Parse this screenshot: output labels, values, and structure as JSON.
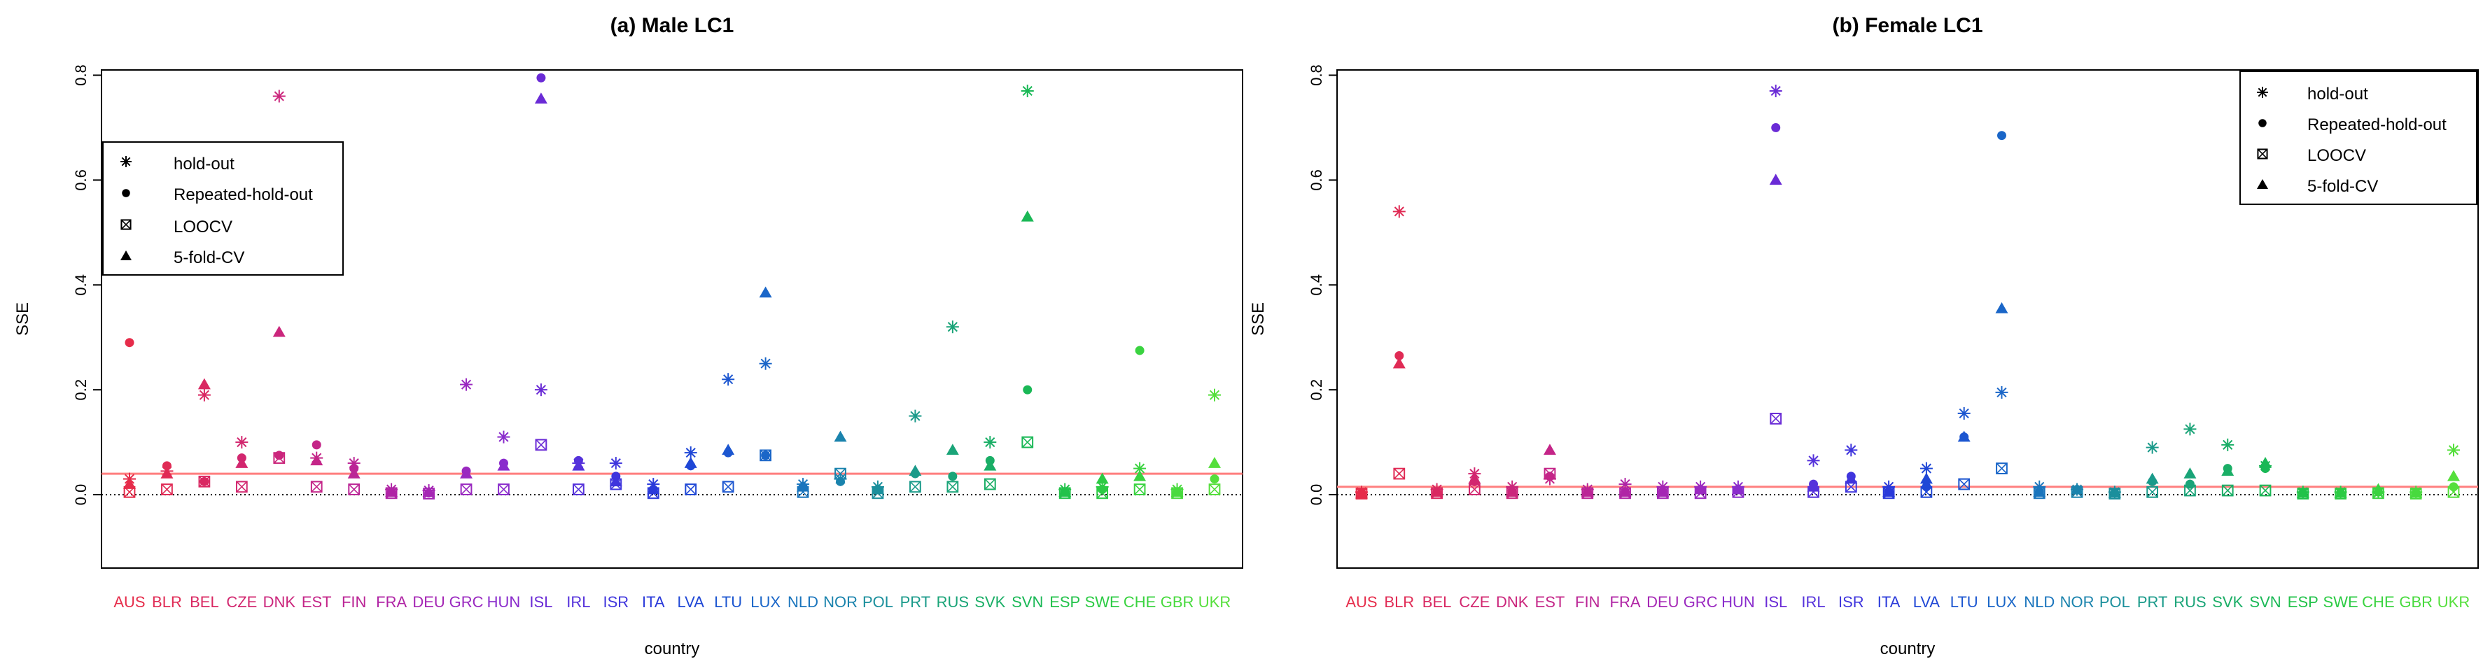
{
  "figure": {
    "xlabel": "country",
    "ylabel": "SSE"
  },
  "legend_items": [
    {
      "label": "hold-out",
      "marker": "asterisk-icon"
    },
    {
      "label": "Repeated-hold-out",
      "marker": "filled-circle-icon"
    },
    {
      "label": "LOOCV",
      "marker": "boxed-x-icon"
    },
    {
      "label": "5-fold-CV",
      "marker": "filled-triangle-icon"
    }
  ],
  "chart_data": [
    {
      "type": "scatter",
      "title": "(a) Male LC1",
      "xlabel": "country",
      "ylabel": "SSE",
      "ylim": [
        -0.14,
        0.81
      ],
      "yticks": [
        0.0,
        0.2,
        0.4,
        0.6,
        0.8
      ],
      "ytick_labels": [
        "0.0",
        "0.2",
        "0.4",
        "0.6",
        "0.8"
      ],
      "legend_position": "upper-left",
      "reference_lines": [
        {
          "name": "mean-sse-line",
          "value": 0.04,
          "color": "#ff7f7f",
          "style": "solid"
        },
        {
          "name": "zero-line",
          "value": 0.0,
          "color": "#000000",
          "style": "dotted"
        }
      ],
      "categories": [
        "AUS",
        "BLR",
        "BEL",
        "CZE",
        "DNK",
        "EST",
        "FIN",
        "FRA",
        "DEU",
        "GRC",
        "HUN",
        "ISL",
        "IRL",
        "ISR",
        "ITA",
        "LVA",
        "LTU",
        "LUX",
        "NLD",
        "NOR",
        "POL",
        "PRT",
        "RUS",
        "SVK",
        "SVN",
        "ESP",
        "SWE",
        "CHE",
        "GBR",
        "UKR"
      ],
      "category_colors": [
        "#e62c4a",
        "#e02b55",
        "#d92862",
        "#d2276f",
        "#cb267c",
        "#c42588",
        "#bb2596",
        "#b024a5",
        "#a526b4",
        "#9a29c0",
        "#8a2ccc",
        "#6a2bd6",
        "#5532db",
        "#3f35dd",
        "#2a3ada",
        "#1f47d6",
        "#1c56d0",
        "#1a66c8",
        "#1a75bd",
        "#1a83ad",
        "#1a8f9c",
        "#1a9a8a",
        "#1aa478",
        "#1aae66",
        "#1ab856",
        "#22c24a",
        "#2ccb44",
        "#3ad340",
        "#48da3e",
        "#55df3c"
      ],
      "series": [
        {
          "name": "hold-out",
          "values": [
            0.03,
            0.045,
            0.19,
            0.1,
            0.76,
            0.07,
            0.06,
            0.01,
            0.008,
            0.21,
            0.11,
            0.2,
            0.06,
            0.06,
            0.02,
            0.08,
            0.22,
            0.25,
            0.02,
            0.03,
            0.015,
            0.15,
            0.32,
            0.1,
            0.77,
            0.01,
            0.015,
            0.05,
            0.01,
            0.19
          ]
        },
        {
          "name": "Repeated-hold-out",
          "values": [
            0.29,
            0.055,
            0.025,
            0.07,
            0.075,
            0.095,
            0.05,
            0.005,
            0.003,
            0.045,
            0.06,
            0.795,
            0.065,
            0.035,
            0.01,
            0.055,
            0.08,
            0.075,
            0.015,
            0.025,
            0.01,
            0.04,
            0.035,
            0.065,
            0.2,
            0.005,
            0.01,
            0.275,
            0.005,
            0.03
          ]
        },
        {
          "name": "LOOCV",
          "values": [
            0.005,
            0.01,
            0.025,
            0.015,
            0.07,
            0.015,
            0.01,
            0.003,
            0.002,
            0.01,
            0.01,
            0.095,
            0.01,
            0.02,
            0.003,
            0.01,
            0.015,
            0.075,
            0.005,
            0.04,
            0.003,
            0.015,
            0.015,
            0.02,
            0.1,
            0.003,
            0.003,
            0.01,
            0.003,
            0.01
          ]
        },
        {
          "name": "5-fold-CV",
          "values": [
            0.02,
            0.04,
            0.21,
            0.06,
            0.31,
            0.065,
            0.04,
            0.005,
            0.005,
            0.04,
            0.055,
            0.755,
            0.055,
            0.025,
            0.01,
            0.06,
            0.085,
            0.385,
            0.015,
            0.11,
            0.01,
            0.045,
            0.085,
            0.055,
            0.53,
            0.005,
            0.03,
            0.035,
            0.005,
            0.06
          ]
        }
      ]
    },
    {
      "type": "scatter",
      "title": "(b) Female LC1",
      "xlabel": "country",
      "ylabel": "SSE",
      "ylim": [
        -0.14,
        0.81
      ],
      "yticks": [
        0.0,
        0.2,
        0.4,
        0.6,
        0.8
      ],
      "ytick_labels": [
        "0.0",
        "0.2",
        "0.4",
        "0.6",
        "0.8"
      ],
      "legend_position": "top-right",
      "reference_lines": [
        {
          "name": "mean-sse-line",
          "value": 0.015,
          "color": "#ff7f7f",
          "style": "solid"
        },
        {
          "name": "zero-line",
          "value": 0.0,
          "color": "#000000",
          "style": "dotted"
        }
      ],
      "categories": [
        "AUS",
        "BLR",
        "BEL",
        "CZE",
        "DNK",
        "EST",
        "FIN",
        "FRA",
        "DEU",
        "GRC",
        "HUN",
        "ISL",
        "IRL",
        "ISR",
        "ITA",
        "LVA",
        "LTU",
        "LUX",
        "NLD",
        "NOR",
        "POL",
        "PRT",
        "RUS",
        "SVK",
        "SVN",
        "ESP",
        "SWE",
        "CHE",
        "GBR",
        "UKR"
      ],
      "category_colors": [
        "#e62c4a",
        "#e02b55",
        "#d92862",
        "#d2276f",
        "#cb267c",
        "#c42588",
        "#bb2596",
        "#b024a5",
        "#a526b4",
        "#9a29c0",
        "#8a2ccc",
        "#6a2bd6",
        "#5532db",
        "#3f35dd",
        "#2a3ada",
        "#1f47d6",
        "#1c56d0",
        "#1a66c8",
        "#1a75bd",
        "#1a83ad",
        "#1a8f9c",
        "#1a9a8a",
        "#1aa478",
        "#1aae66",
        "#1ab856",
        "#22c24a",
        "#2ccb44",
        "#3ad340",
        "#48da3e",
        "#55df3c"
      ],
      "series": [
        {
          "name": "hold-out",
          "values": [
            0.005,
            0.54,
            0.01,
            0.04,
            0.015,
            0.03,
            0.01,
            0.02,
            0.015,
            0.015,
            0.015,
            0.77,
            0.065,
            0.085,
            0.015,
            0.05,
            0.155,
            0.195,
            0.015,
            0.01,
            0.005,
            0.09,
            0.125,
            0.095,
            0.055,
            0.005,
            0.005,
            0.005,
            0.005,
            0.085
          ]
        },
        {
          "name": "Repeated-hold-out",
          "values": [
            0.003,
            0.265,
            0.005,
            0.025,
            0.005,
            0.035,
            0.005,
            0.005,
            0.005,
            0.01,
            0.01,
            0.7,
            0.02,
            0.035,
            0.005,
            0.015,
            0.11,
            0.685,
            0.005,
            0.01,
            0.003,
            0.025,
            0.02,
            0.05,
            0.05,
            0.003,
            0.003,
            0.005,
            0.003,
            0.015
          ]
        },
        {
          "name": "LOOCV",
          "values": [
            0.002,
            0.04,
            0.003,
            0.01,
            0.003,
            0.04,
            0.003,
            0.003,
            0.003,
            0.003,
            0.005,
            0.145,
            0.005,
            0.015,
            0.003,
            0.005,
            0.02,
            0.05,
            0.003,
            0.005,
            0.002,
            0.005,
            0.008,
            0.008,
            0.008,
            0.002,
            0.002,
            0.003,
            0.002,
            0.005
          ]
        },
        {
          "name": "5-fold-CV",
          "values": [
            0.002,
            0.25,
            0.005,
            0.03,
            0.005,
            0.085,
            0.005,
            0.005,
            0.005,
            0.01,
            0.01,
            0.6,
            0.015,
            0.03,
            0.005,
            0.03,
            0.11,
            0.355,
            0.005,
            0.01,
            0.003,
            0.03,
            0.04,
            0.045,
            0.06,
            0.003,
            0.003,
            0.01,
            0.003,
            0.035
          ]
        }
      ]
    }
  ]
}
